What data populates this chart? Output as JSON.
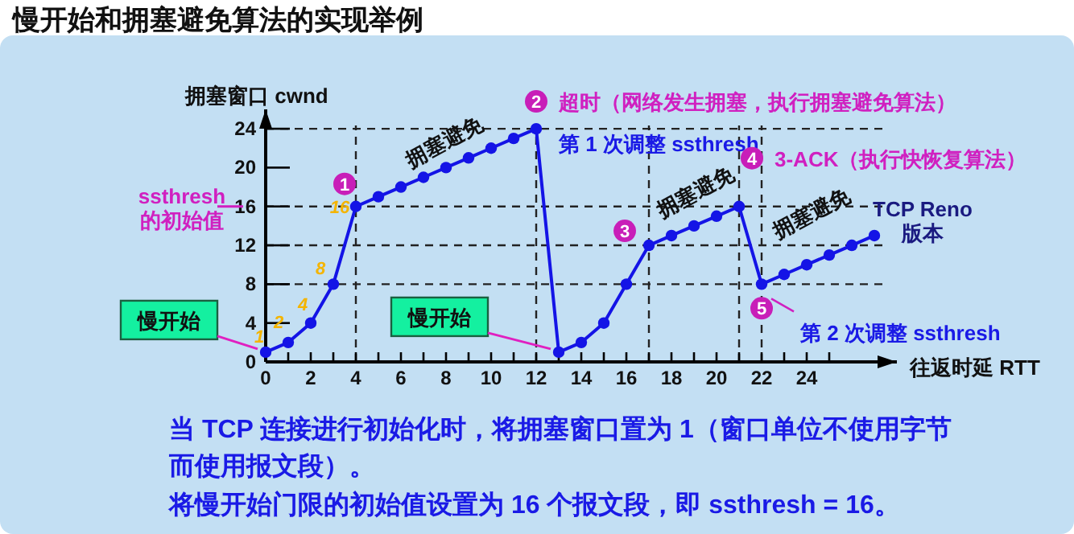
{
  "chart_data": {
    "type": "line",
    "title": "慢开始和拥塞避免算法的实现举例",
    "xlabel": "往返时延 RTT",
    "ylabel": "拥塞窗口 cwnd",
    "x": [
      0,
      1,
      2,
      3,
      4,
      5,
      6,
      7,
      8,
      9,
      10,
      11,
      12,
      13,
      14,
      15,
      16,
      17,
      18,
      19,
      20,
      21,
      22,
      23,
      24,
      25,
      26,
      27
    ],
    "series": [
      {
        "color": "#1414e6",
        "values": [
          1,
          2,
          4,
          8,
          16,
          17,
          18,
          19,
          20,
          21,
          22,
          23,
          24,
          1,
          2,
          4,
          8,
          12,
          13,
          14,
          15,
          16,
          8,
          9,
          10,
          11,
          12,
          13
        ]
      }
    ],
    "marker": "circle",
    "line_style": "solid",
    "xlim": [
      0,
      28
    ],
    "ylim": [
      0,
      26
    ],
    "xticks": [
      0,
      {
        "value": 1,
        "label": null
      },
      2,
      {
        "value": 3,
        "label": null
      },
      4,
      {
        "value": 5,
        "label": null
      },
      6,
      {
        "value": 7,
        "label": null
      },
      8,
      {
        "value": 9,
        "label": null
      },
      10,
      {
        "value": 11,
        "label": null
      },
      12,
      {
        "value": 13,
        "label": null
      },
      14,
      {
        "value": 15,
        "label": null
      },
      16,
      {
        "value": 17,
        "label": null
      },
      18,
      {
        "value": 19,
        "label": null
      },
      20,
      {
        "value": 21,
        "label": null
      },
      22,
      {
        "value": 23,
        "label": null
      },
      24,
      {
        "value": 25,
        "label": null
      }
    ],
    "yticks": [
      0,
      4,
      8,
      12,
      16,
      20,
      24
    ],
    "ref_lines": [
      {
        "axis": "y",
        "value": 24,
        "line_style": "dashed"
      },
      {
        "axis": "y",
        "value": 16,
        "line_style": "dashed"
      },
      {
        "axis": "y",
        "value": 12,
        "line_style": "dashed"
      },
      {
        "axis": "y",
        "value": 8,
        "line_style": "dashed"
      },
      {
        "axis": "x",
        "value": 4,
        "line_style": "dashed"
      },
      {
        "axis": "x",
        "value": 12,
        "line_style": "dashed"
      },
      {
        "axis": "x",
        "value": 17,
        "line_style": "dashed"
      },
      {
        "axis": "x",
        "value": 21,
        "line_style": "dashed"
      },
      {
        "axis": "x",
        "value": 22,
        "line_style": "dashed"
      }
    ],
    "annotations": [
      {
        "text": "ssthresh\n的初始值",
        "x": 0,
        "y": 16
      },
      {
        "text": "慢开始",
        "x": 0,
        "y": 1
      },
      {
        "text": "慢开始",
        "x": 13,
        "y": 1
      },
      {
        "text": "1",
        "x": 4,
        "y": 16
      },
      {
        "text": "拥塞避免",
        "x": 6,
        "y": 18
      },
      {
        "text": "2",
        "x": 12,
        "y": 24
      },
      {
        "text": "超时（网络发生拥塞，执行拥塞避免算法）",
        "x": 12,
        "y": 24
      },
      {
        "text": "第 1 次调整 ssthresh",
        "x": 12,
        "y": 24
      },
      {
        "text": "3",
        "x": 17,
        "y": 12
      },
      {
        "text": "拥塞避免",
        "x": 19,
        "y": 14
      },
      {
        "text": "4",
        "x": 21,
        "y": 16
      },
      {
        "text": "3-ACK（执行快恢复算法）",
        "x": 21,
        "y": 16
      },
      {
        "text": "TCP Reno\n版本",
        "x": 27,
        "y": 13
      },
      {
        "text": "5",
        "x": 22,
        "y": 8
      },
      {
        "text": "拥塞避免",
        "x": 24,
        "y": 10
      },
      {
        "text": "第 2 次调整 ssthresh",
        "x": 22,
        "y": 8
      },
      {
        "text": "1",
        "x": 0,
        "y": 1
      },
      {
        "text": "2",
        "x": 1,
        "y": 2
      },
      {
        "text": "4",
        "x": 2,
        "y": 4
      },
      {
        "text": "8",
        "x": 3,
        "y": 8
      },
      {
        "text": "16",
        "x": 4,
        "y": 16
      },
      "当 TCP 连接进行初始化时，将拥塞窗口置为 1（窗口单位不使用字节而使用报文段）。",
      "将慢开始门限的初始值设置为 16 个报文段，即 ssthresh = 16。"
    ]
  }
}
